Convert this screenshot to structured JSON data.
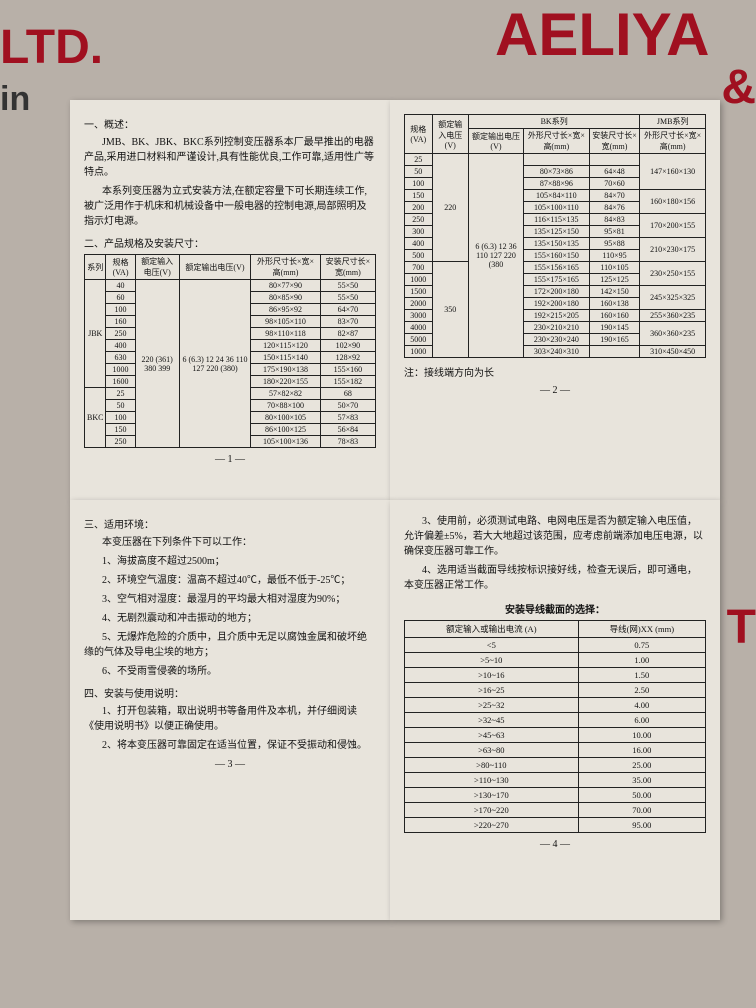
{
  "bg": {
    "ltd": "LTD.",
    "aeliya": "AELIYA",
    "in": "in",
    "amp": "&",
    "side": "T"
  },
  "page1": {
    "h1": "一、概述：",
    "p1": "JMB、BK、JBK、BKC系列控制变压器系本厂最早推出的电器产品,采用进口材料和严谨设计,具有性能优良,工作可靠,适用性广等特点。",
    "p2": "本系列变压器为立式安装方法,在额定容量下可长期连续工作,被广泛用作于机床和机械设备中一般电器的控制电源,局部照明及指示灯电源。",
    "h2": "二、产品规格及安装尺寸：",
    "table": {
      "cols": [
        "系列",
        "规格(VA)",
        "额定输入电压(V)",
        "额定输出电压(V)",
        "外形尺寸长×宽×高(mm)",
        "安装尺寸长×宽(mm)"
      ],
      "jbk_series": "JBK",
      "bkc_series": "BKC",
      "volt_in": "220 (361) 380 399",
      "volt_out": "6 (6.3) 12 24 36 110 127 220 (380)",
      "rows_jbk": [
        [
          "40",
          "80×77×90",
          "55×50"
        ],
        [
          "60",
          "80×85×90",
          "55×50"
        ],
        [
          "100",
          "86×95×92",
          "64×70"
        ],
        [
          "160",
          "98×105×110",
          "83×70"
        ],
        [
          "250",
          "98×110×118",
          "82×87"
        ],
        [
          "400",
          "120×115×120",
          "102×90"
        ],
        [
          "630",
          "150×115×140",
          "128×92"
        ],
        [
          "1000",
          "175×190×138",
          "155×160"
        ],
        [
          "1600",
          "180×220×155",
          "155×182"
        ]
      ],
      "rows_bkc": [
        [
          "25",
          "57×82×82",
          "68"
        ],
        [
          "50",
          "70×88×100",
          "50×70"
        ],
        [
          "100",
          "80×100×105",
          "57×83"
        ],
        [
          "150",
          "86×100×125",
          "56×84"
        ],
        [
          "250",
          "105×100×136",
          "78×83"
        ]
      ]
    },
    "num": "— 1 —"
  },
  "page2": {
    "table": {
      "hdr_group1": "BK系列",
      "hdr_group2": "JMB系列",
      "cols": [
        "规格(VA)",
        "额定输入电压(V)",
        "额定输出电压(V)",
        "外形尺寸长×宽×高(mm)",
        "安装尺寸长×宽(mm)",
        "外形尺寸长×宽×高(mm)"
      ],
      "vin1": "220",
      "vin2": "350",
      "vout": "6 (6.3) 12 36 110 127 220 (380",
      "jmb_vals": [
        "147×160×130",
        "160×180×156",
        "170×200×155",
        "210×230×175",
        "230×250×155",
        "245×325×325",
        "255×360×235",
        "360×360×235",
        "310×450×450"
      ],
      "rows": [
        [
          "25",
          "",
          "",
          ""
        ],
        [
          "50",
          "80×73×86",
          "64×48"
        ],
        [
          "100",
          "87×88×96",
          "70×60"
        ],
        [
          "150",
          "105×84×110",
          "84×70"
        ],
        [
          "200",
          "105×100×110",
          "84×76"
        ],
        [
          "250",
          "116×115×135",
          "84×83"
        ],
        [
          "300",
          "135×125×150",
          "95×81"
        ],
        [
          "400",
          "135×150×135",
          "95×88"
        ],
        [
          "500",
          "155×160×150",
          "110×95"
        ],
        [
          "700",
          "155×156×165",
          "110×105"
        ],
        [
          "1000",
          "155×175×165",
          "125×125"
        ],
        [
          "1500",
          "172×200×180",
          "142×150"
        ],
        [
          "2000",
          "192×200×180",
          "160×138"
        ],
        [
          "3000",
          "192×215×205",
          "160×160"
        ],
        [
          "4000",
          "230×210×210",
          "190×145"
        ],
        [
          "5000",
          "230×230×240",
          "190×165"
        ],
        [
          "1000",
          "303×240×310",
          ""
        ]
      ]
    },
    "note": "注：接线端方向为长",
    "num": "— 2 —"
  },
  "page3": {
    "h3": "三、适用环境：",
    "p0": "本变压器在下列条件下可以工作：",
    "items": [
      "1、海拔高度不超过2500m；",
      "2、环境空气温度：温高不超过40℃，最低不低于-25℃；",
      "3、空气相对湿度：最湿月的平均最大相对湿度为90%；",
      "4、无剧烈震动和冲击振动的地方；",
      "5、无爆炸危险的介质中，且介质中无足以腐蚀金属和破坏绝缘的气体及导电尘埃的地方；",
      "6、不受雨雪侵袭的场所。"
    ],
    "h4": "四、安装与使用说明：",
    "items2": [
      "1、打开包装箱，取出说明书等备用件及本机，并仔细阅读《使用说明书》以便正确使用。",
      "2、将本变压器可靠固定在适当位置，保证不受振动和侵蚀。"
    ],
    "num": "— 3 —"
  },
  "page4": {
    "items": [
      "3、使用前，必须测试电路、电网电压是否为额定输入电压值，允许偏差±5%，若大大地超过该范围，应考虑前端添加电压电源，以确保变压器可靠工作。",
      "4、选用适当截面导线按标识接好线，检查无误后，即可通电，本变压器正常工作。"
    ],
    "subhead": "安装导线截面的选择：",
    "table": {
      "cols": [
        "额定输入或输出电流 (A)",
        "导线(网)XX (mm)"
      ],
      "rows": [
        [
          "<5",
          "0.75"
        ],
        [
          ">5~10",
          "1.00"
        ],
        [
          ">10~16",
          "1.50"
        ],
        [
          ">16~25",
          "2.50"
        ],
        [
          ">25~32",
          "4.00"
        ],
        [
          ">32~45",
          "6.00"
        ],
        [
          ">45~63",
          "10.00"
        ],
        [
          ">63~80",
          "16.00"
        ],
        [
          ">80~110",
          "25.00"
        ],
        [
          ">110~130",
          "35.00"
        ],
        [
          ">130~170",
          "50.00"
        ],
        [
          ">170~220",
          "70.00"
        ],
        [
          ">220~270",
          "95.00"
        ]
      ]
    },
    "num": "— 4 —"
  }
}
